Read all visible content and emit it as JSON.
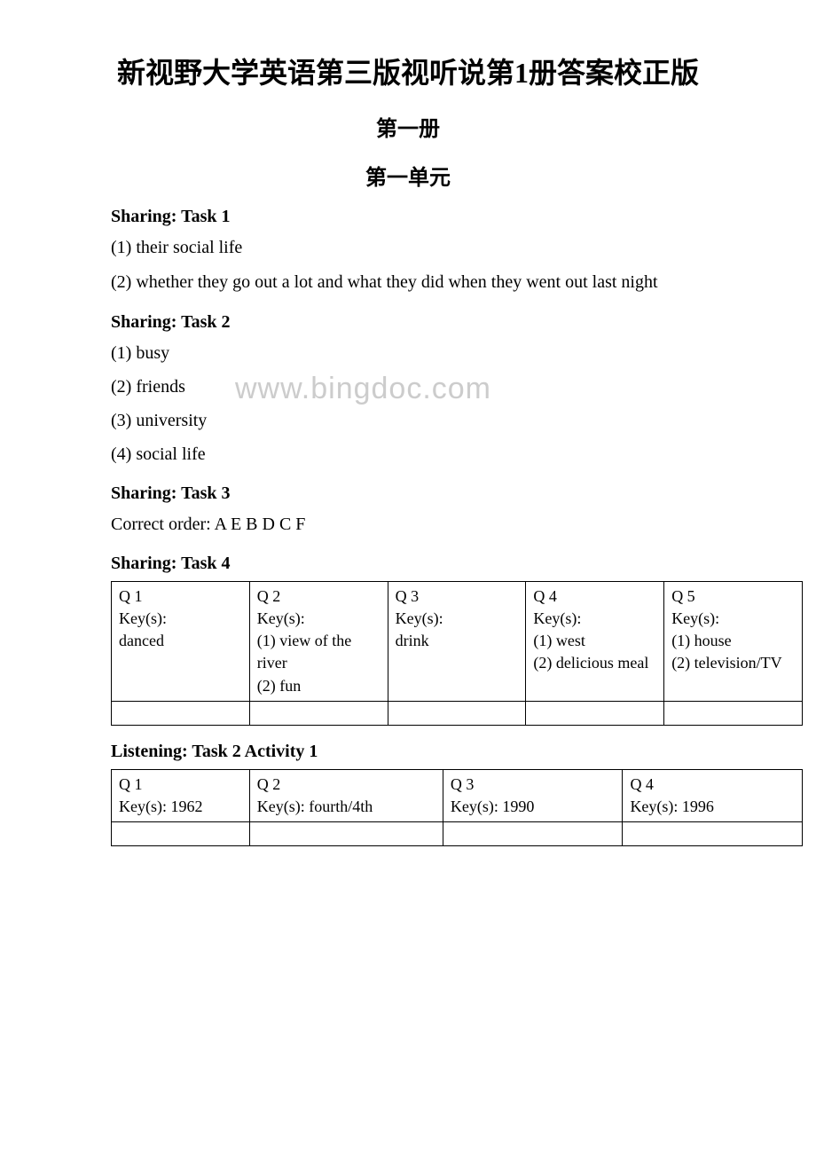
{
  "title": "新视野大学英语第三版视听说第1册答案校正版",
  "volume": "第一册",
  "unit": "第一单元",
  "sharing1": {
    "heading": "Sharing: Task 1",
    "line1": "(1) their social life",
    "line2": "(2) whether they go out a lot and what they did when they went out last night"
  },
  "sharing2": {
    "heading": "Sharing: Task 2",
    "a1": "(1) busy",
    "a2": "(2) friends",
    "a3": "(3) university",
    "a4": "(4) social life"
  },
  "watermark": "www.bingdoc.com",
  "sharing3": {
    "heading": "Sharing: Task 3",
    "answer": "Correct order: A E B D C F"
  },
  "sharing4": {
    "heading": "Sharing: Task 4",
    "cells": {
      "c1": "Q 1\nKey(s):\ndanced",
      "c2": "Q 2\nKey(s):\n(1) view of the river\n(2) fun",
      "c3": "Q 3\nKey(s):\ndrink",
      "c4": "Q 4\nKey(s):\n(1) west\n(2) delicious meal",
      "c5": "Q 5\nKey(s):\n(1) house\n(2) television/TV"
    }
  },
  "listening": {
    "heading": "Listening: Task 2 Activity 1",
    "cells": {
      "c1": "Q 1\nKey(s): 1962",
      "c2": "Q 2\nKey(s): fourth/4th",
      "c3": "Q 3\nKey(s): 1990",
      "c4": "Q 4\nKey(s): 1996"
    }
  }
}
